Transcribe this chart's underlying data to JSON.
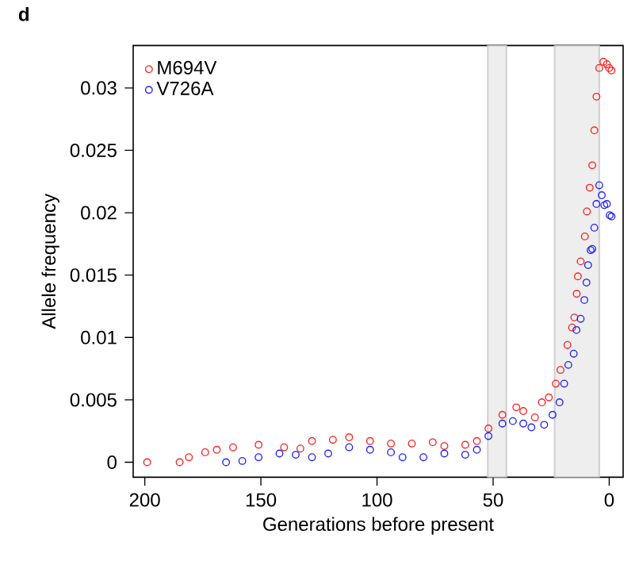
{
  "chart_data": {
    "type": "scatter",
    "title": "d",
    "xlabel": "Generations before present",
    "ylabel": "Allele frequency",
    "xlim": [
      205,
      -6
    ],
    "xticks": [
      200,
      150,
      100,
      50,
      0
    ],
    "ylim": [
      -0.0012,
      0.0334
    ],
    "yticks": [
      0,
      0.005,
      0.01,
      0.015,
      0.02,
      0.025,
      0.03
    ],
    "marker": "circle",
    "legend": "top left",
    "grid": false,
    "bands": [
      {
        "axis": "x",
        "from": 52.3,
        "to": 44.3,
        "color": "#eeeeee"
      },
      {
        "axis": "x",
        "from": 23.5,
        "to": 4.3,
        "color": "#eeeeee"
      }
    ],
    "series": [
      {
        "name": "M694V",
        "color": "#ff2020",
        "x": [
          199,
          185,
          181,
          174,
          169,
          162,
          151,
          140,
          133,
          128,
          119,
          112,
          103,
          94,
          85,
          76,
          71,
          62,
          57,
          52,
          46,
          40,
          37,
          32,
          29,
          26,
          23,
          21,
          18,
          16,
          15,
          14,
          13.5,
          12.3,
          10.5,
          9.6,
          8.4,
          7.3,
          6.4,
          5.5,
          4.3,
          2.5,
          1,
          0,
          -1
        ],
        "values": [
          0,
          0,
          0.0004,
          0.0008,
          0.001,
          0.0012,
          0.0014,
          0.0012,
          0.0011,
          0.0017,
          0.0018,
          0.002,
          0.0017,
          0.0015,
          0.0015,
          0.0016,
          0.0013,
          0.0014,
          0.0017,
          0.0027,
          0.0038,
          0.0044,
          0.0041,
          0.0036,
          0.0048,
          0.0052,
          0.0063,
          0.0074,
          0.0094,
          0.0108,
          0.0116,
          0.0135,
          0.0149,
          0.0161,
          0.0181,
          0.0201,
          0.022,
          0.0238,
          0.0266,
          0.0293,
          0.0316,
          0.0321,
          0.0319,
          0.0316,
          0.0314
        ]
      },
      {
        "name": "V726A",
        "color": "#2020ff",
        "x": [
          165,
          158,
          151,
          142,
          135,
          128,
          121,
          112,
          103,
          94,
          89,
          80,
          71,
          62,
          57,
          52,
          46,
          41.5,
          37,
          33.5,
          28,
          24.4,
          21.4,
          19.4,
          17.6,
          15.3,
          14.1,
          12.3,
          10.7,
          9.8,
          9.1,
          8,
          7.3,
          6.4,
          5.5,
          4.3,
          3.2,
          2.1,
          1,
          -0.2,
          -1
        ],
        "values": [
          0,
          0.0001,
          0.0004,
          0.0007,
          0.0006,
          0.0004,
          0.0007,
          0.0012,
          0.001,
          0.0008,
          0.0004,
          0.0004,
          0.0007,
          0.0006,
          0.001,
          0.0021,
          0.0031,
          0.0033,
          0.0031,
          0.0028,
          0.003,
          0.0038,
          0.0048,
          0.0063,
          0.0078,
          0.0087,
          0.0106,
          0.0115,
          0.013,
          0.0144,
          0.0158,
          0.017,
          0.0171,
          0.0188,
          0.0207,
          0.0222,
          0.0214,
          0.0206,
          0.0207,
          0.0198,
          0.0197
        ]
      }
    ]
  }
}
